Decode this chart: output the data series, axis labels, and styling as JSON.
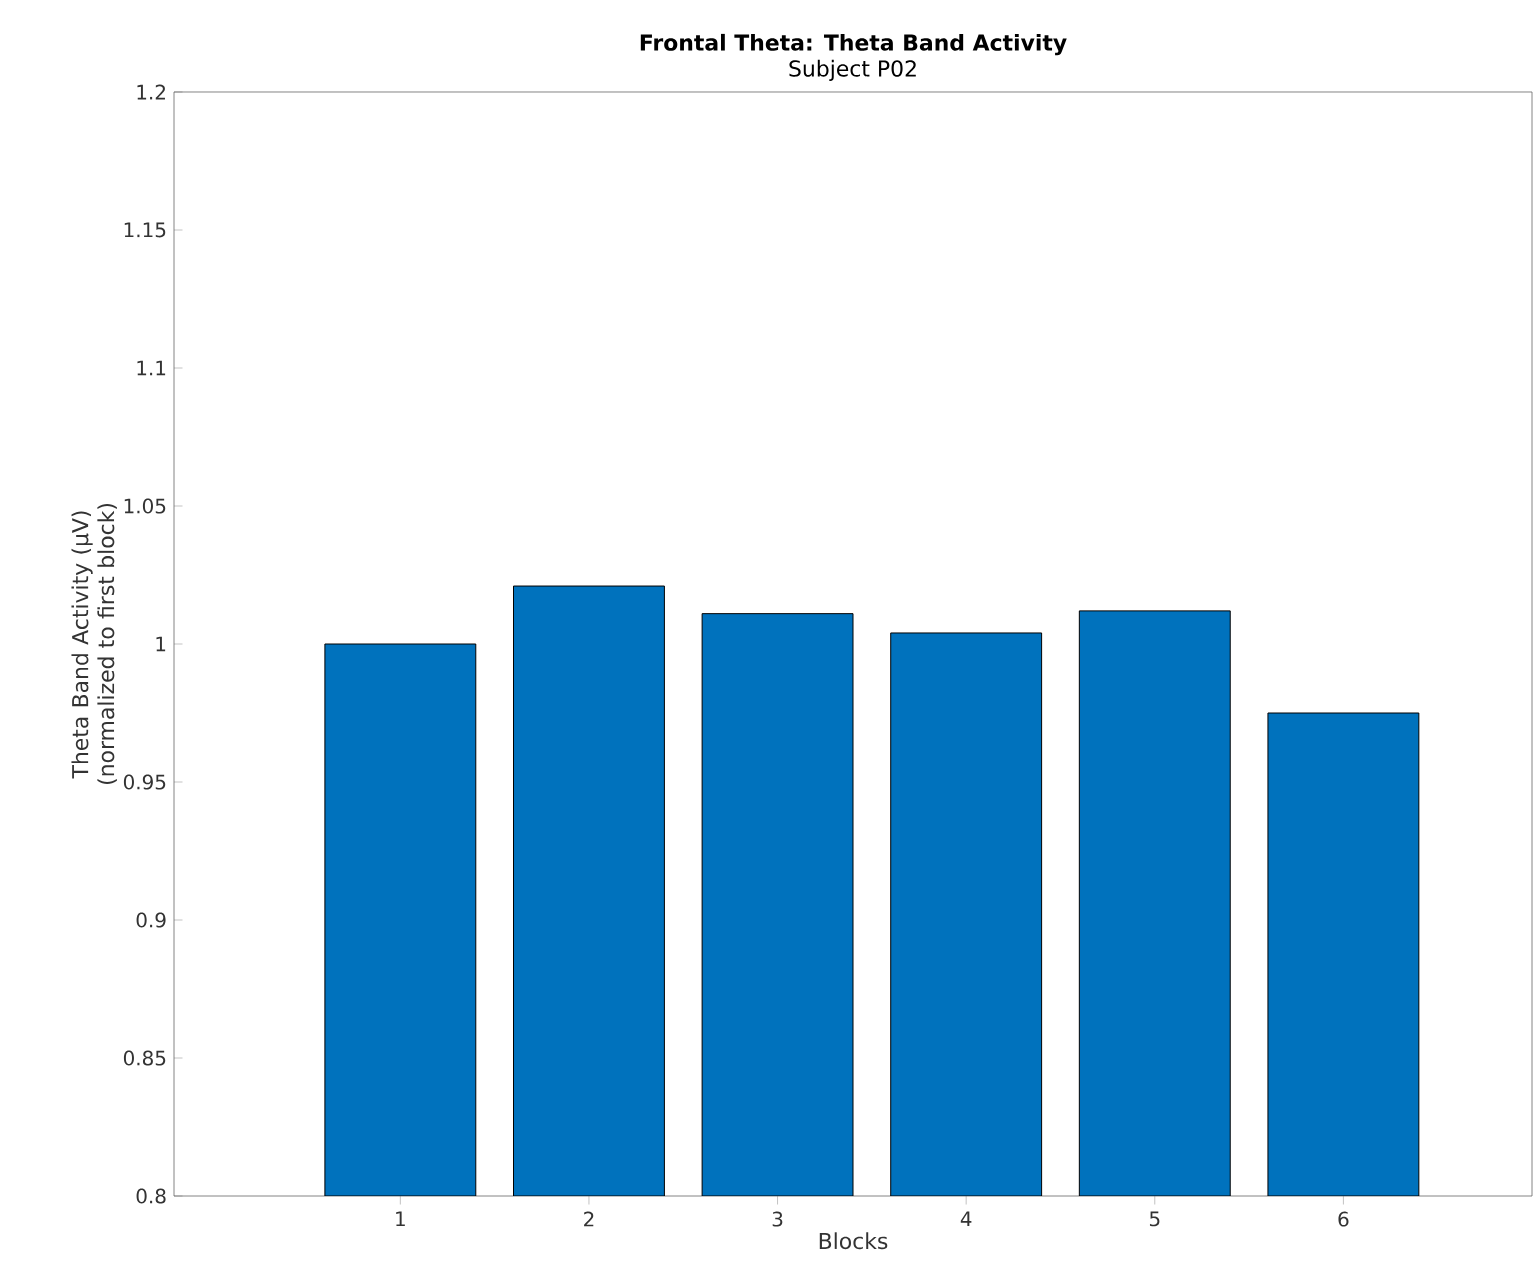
{
  "chart_data": {
    "type": "bar",
    "title": "Frontal Theta: Theta Band Activity",
    "subtitle": "Subject P02",
    "xlabel": "Blocks",
    "ylabel": "Theta Band Activity (µV) (normalized to first block)",
    "x": [
      1,
      2,
      3,
      4,
      5,
      6
    ],
    "values": [
      1.0,
      1.021,
      1.011,
      1.004,
      1.012,
      0.975
    ],
    "color": "#0072bd",
    "xlim": [
      -0.2,
      7
    ],
    "xticks": [
      1,
      2,
      3,
      4,
      5,
      6
    ],
    "ylim": [
      0.8,
      1.2
    ],
    "yticks": [
      0.8,
      0.85,
      0.9,
      0.95,
      1,
      1.05,
      1.1,
      1.15,
      1.2
    ]
  }
}
